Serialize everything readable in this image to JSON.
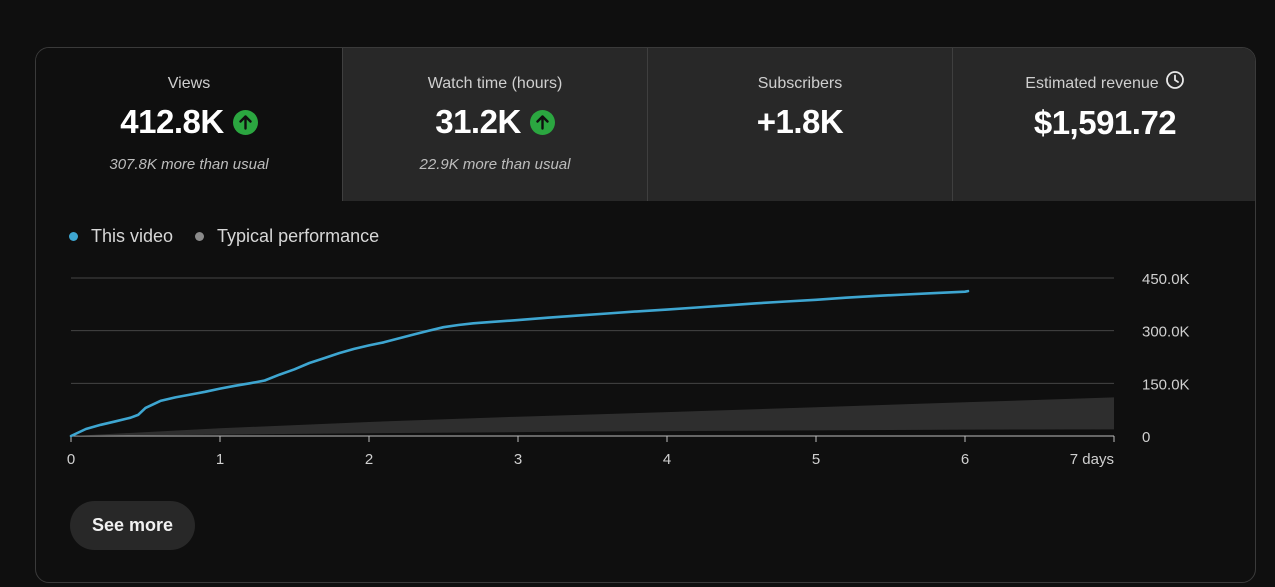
{
  "tabs": [
    {
      "label": "Views",
      "value": "412.8K",
      "trend_icon": "arrow-up-circle-icon",
      "sub": "307.8K more than usual"
    },
    {
      "label": "Watch time (hours)",
      "value": "31.2K",
      "trend_icon": "arrow-up-circle-icon",
      "sub": "22.9K more than usual"
    },
    {
      "label": "Subscribers",
      "value": "+1.8K"
    },
    {
      "label": "Estimated revenue",
      "value": "$1,591.72",
      "info_icon": "clock-icon"
    }
  ],
  "legend": [
    {
      "name": "This video",
      "color": "#3ea6d1"
    },
    {
      "name": "Typical performance",
      "color": "#8a8a8a"
    }
  ],
  "see_more_label": "See more",
  "chart_data": {
    "type": "line",
    "xlabel": "",
    "ylabel": "",
    "x_ticks": [
      "0",
      "1",
      "2",
      "3",
      "4",
      "5",
      "6",
      "7 days"
    ],
    "y_ticks": [
      "0",
      "150.0K",
      "300.0K",
      "450.0K"
    ],
    "xlim": [
      0,
      7
    ],
    "ylim": [
      0,
      450000
    ],
    "grid": true,
    "legend_position": "top-left",
    "series": [
      {
        "name": "This video",
        "color": "#3ea6d1",
        "x": [
          0,
          0.1,
          0.2,
          0.3,
          0.4,
          0.45,
          0.5,
          0.6,
          0.7,
          0.8,
          0.9,
          1.0,
          1.1,
          1.2,
          1.3,
          1.4,
          1.5,
          1.6,
          1.7,
          1.8,
          1.9,
          2.0,
          2.1,
          2.2,
          2.3,
          2.4,
          2.5,
          2.6,
          2.7,
          2.8,
          3.0,
          3.2,
          3.4,
          3.6,
          3.8,
          4.0,
          4.2,
          4.4,
          4.6,
          4.8,
          5.0,
          5.2,
          5.4,
          5.6,
          5.8,
          6.0,
          6.02
        ],
        "values": [
          0,
          20000,
          32000,
          42000,
          52000,
          60000,
          80000,
          100000,
          110000,
          118000,
          126000,
          135000,
          143000,
          150000,
          158000,
          175000,
          190000,
          208000,
          222000,
          236000,
          248000,
          258000,
          267000,
          278000,
          289000,
          300000,
          310000,
          316000,
          321000,
          324000,
          330000,
          337000,
          343000,
          349000,
          355000,
          360000,
          366000,
          372000,
          378000,
          383000,
          388000,
          394000,
          399000,
          403000,
          407000,
          411000,
          412800
        ]
      },
      {
        "name": "Typical performance",
        "color": "#8a8a8a",
        "type": "area",
        "x": [
          0,
          1,
          2,
          3,
          4,
          5,
          6,
          7
        ],
        "lower": [
          0,
          4000,
          8000,
          11000,
          14000,
          16000,
          18000,
          19000
        ],
        "upper": [
          0,
          22000,
          40000,
          55000,
          68000,
          82000,
          96000,
          110000
        ]
      }
    ]
  }
}
